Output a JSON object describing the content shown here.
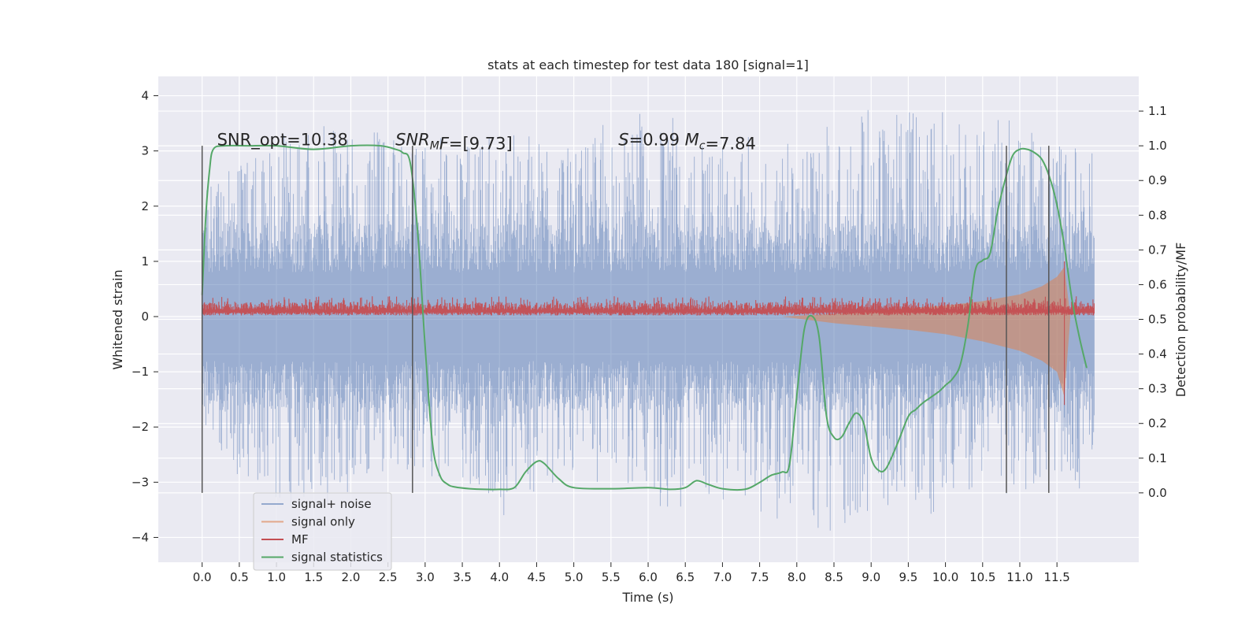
{
  "chart_data": {
    "type": "line",
    "title": "stats at each timestep for test data 180 [signal=1]",
    "xlabel": "Time (s)",
    "ylabel": "Whitened strain",
    "ylabel_right": "Detection probability/MF",
    "xlim": [
      -0.59,
      12.6
    ],
    "ylim": [
      -4.45,
      4.35
    ],
    "ylim_right": [
      -0.2,
      1.2
    ],
    "x_ticks": [
      0.0,
      0.5,
      1.0,
      1.5,
      2.0,
      2.5,
      3.0,
      3.5,
      4.0,
      4.5,
      5.0,
      5.5,
      6.0,
      6.5,
      7.0,
      7.5,
      8.0,
      8.5,
      9.0,
      9.5,
      10.0,
      10.5,
      11.0,
      11.5
    ],
    "x_tick_labels": [
      "0.0",
      "0.5",
      "1.0",
      "1.5",
      "2.0",
      "2.5",
      "3.0",
      "3.5",
      "4.0",
      "4.5",
      "5.0",
      "5.5",
      "6.0",
      "6.5",
      "7.0",
      "7.5",
      "8.0",
      "8.5",
      "9.0",
      "9.5",
      "10.0",
      "10.5",
      "11.0",
      "11.5"
    ],
    "y_ticks": [
      -4,
      -3,
      -2,
      -1,
      0,
      1,
      2,
      3,
      4
    ],
    "y_tick_labels": [
      "−4",
      "−3",
      "−2",
      "−1",
      "0",
      "1",
      "2",
      "3",
      "4"
    ],
    "y_right_ticks": [
      0.0,
      0.1,
      0.2,
      0.3,
      0.4,
      0.5,
      0.6,
      0.7,
      0.8,
      0.9,
      1.0,
      1.1
    ],
    "y_right_tick_labels": [
      "0.0",
      "0.1",
      "0.2",
      "0.3",
      "0.4",
      "0.5",
      "0.6",
      "0.7",
      "0.8",
      "0.9",
      "1.0",
      "1.1"
    ],
    "grid": true,
    "legend_position": "lower-left",
    "annotations": [
      {
        "x": 0.2,
        "y": 3.1,
        "parts": [
          {
            "t": "SNR_opt=10.38",
            "i": false
          }
        ]
      },
      {
        "x": 2.6,
        "y": 3.1,
        "parts": [
          {
            "t": "SNR",
            "i": true
          },
          {
            "t": "M",
            "i": true,
            "sub": true
          },
          {
            "t": "F",
            "i": true
          },
          {
            "t": "=[9.73]",
            "i": false
          }
        ]
      },
      {
        "x": 5.6,
        "y": 3.1,
        "parts": [
          {
            "t": "S",
            "i": true
          },
          {
            "t": "=0.99   ",
            "i": false
          },
          {
            "t": "M",
            "i": true
          },
          {
            "t": "c",
            "i": true,
            "sub": true
          },
          {
            "t": "=7.84",
            "i": false
          }
        ]
      }
    ],
    "vertical_lines": [
      {
        "x": 0.0,
        "y_right": [
          0.0,
          1.0
        ]
      },
      {
        "x": 2.83,
        "y_right": [
          0.0,
          1.0
        ]
      },
      {
        "x": 10.82,
        "y_right": [
          0.0,
          1.0
        ]
      },
      {
        "x": 11.39,
        "y_right": [
          0.0,
          1.0
        ]
      }
    ],
    "series": [
      {
        "name": "signal+ noise",
        "color": "#4c72b0",
        "axis": "left",
        "kind": "noise_band",
        "x_range": [
          0.0,
          12.0
        ],
        "envelope_x": [
          0,
          1,
          2,
          3,
          4,
          5,
          6,
          7,
          8,
          9,
          10,
          11,
          12
        ],
        "envelope_max": [
          2.5,
          3.5,
          3.9,
          3.3,
          3.5,
          3.3,
          3.8,
          3.3,
          3.2,
          3.8,
          3.9,
          3.6,
          3.3
        ],
        "envelope_min": [
          -2.3,
          -3.7,
          -3.3,
          -2.9,
          -3.7,
          -3.1,
          -3.5,
          -3.4,
          -3.8,
          -4.1,
          -3.5,
          -3.3,
          -3.1
        ]
      },
      {
        "name": "signal only",
        "color": "#dd8452",
        "axis": "left",
        "kind": "chirp_envelope",
        "x": [
          7.8,
          8.5,
          9.0,
          9.5,
          10.0,
          10.5,
          11.0,
          11.3,
          11.5,
          11.6,
          11.68
        ],
        "upper": [
          0.0,
          0.05,
          0.1,
          0.15,
          0.2,
          0.28,
          0.4,
          0.55,
          0.72,
          0.9,
          0.0
        ],
        "lower": [
          0.0,
          -0.12,
          -0.18,
          -0.24,
          -0.32,
          -0.45,
          -0.62,
          -0.8,
          -1.0,
          -1.45,
          0.0
        ]
      },
      {
        "name": "MF",
        "color": "#c44e52",
        "axis": "left",
        "kind": "noisy_level",
        "x_range": [
          0.0,
          12.0
        ],
        "level_low": 0.02,
        "level_high": 0.35,
        "spike_x": 11.6,
        "spike_range": [
          -1.6,
          1.0
        ]
      },
      {
        "name": "signal statistics",
        "color": "#55a868",
        "axis": "right",
        "x": [
          0.0,
          0.05,
          0.1,
          0.15,
          0.3,
          0.6,
          1.0,
          1.5,
          2.0,
          2.4,
          2.6,
          2.7,
          2.8,
          2.9,
          3.0,
          3.1,
          3.2,
          3.3,
          3.4,
          3.6,
          3.8,
          4.0,
          4.2,
          4.35,
          4.5,
          4.6,
          4.8,
          5.0,
          5.5,
          6.0,
          6.3,
          6.5,
          6.65,
          6.8,
          7.0,
          7.3,
          7.5,
          7.65,
          7.8,
          7.9,
          8.0,
          8.1,
          8.2,
          8.3,
          8.4,
          8.5,
          8.6,
          8.7,
          8.8,
          8.9,
          9.0,
          9.1,
          9.2,
          9.35,
          9.5,
          9.6,
          9.7,
          9.9,
          10.0,
          10.1,
          10.2,
          10.3,
          10.4,
          10.5,
          10.6,
          10.7,
          10.8,
          10.9,
          11.0,
          11.1,
          11.2,
          11.3,
          11.4,
          11.5,
          11.6,
          11.7,
          11.8,
          11.9
        ],
        "y": [
          0.57,
          0.8,
          0.93,
          0.99,
          1.0,
          1.0,
          1.0,
          0.99,
          1.0,
          1.0,
          0.99,
          0.98,
          0.95,
          0.75,
          0.42,
          0.14,
          0.05,
          0.025,
          0.017,
          0.012,
          0.01,
          0.01,
          0.015,
          0.06,
          0.09,
          0.085,
          0.04,
          0.015,
          0.012,
          0.015,
          0.01,
          0.015,
          0.035,
          0.025,
          0.012,
          0.01,
          0.03,
          0.05,
          0.06,
          0.08,
          0.28,
          0.47,
          0.51,
          0.45,
          0.22,
          0.16,
          0.16,
          0.2,
          0.23,
          0.2,
          0.1,
          0.065,
          0.07,
          0.14,
          0.22,
          0.24,
          0.26,
          0.29,
          0.31,
          0.33,
          0.37,
          0.48,
          0.64,
          0.67,
          0.69,
          0.81,
          0.9,
          0.97,
          0.99,
          0.99,
          0.98,
          0.96,
          0.91,
          0.83,
          0.71,
          0.56,
          0.45,
          0.36
        ]
      }
    ]
  }
}
